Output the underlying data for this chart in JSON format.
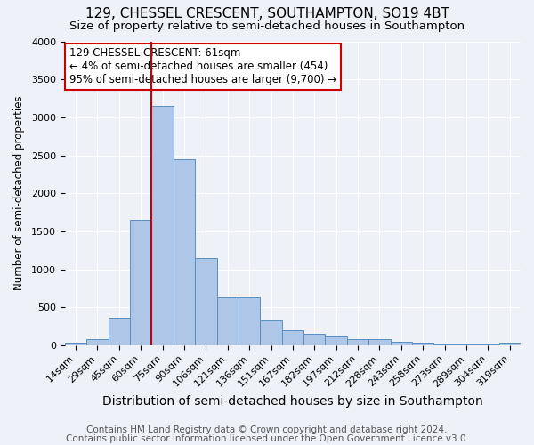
{
  "title1": "129, CHESSEL CRESCENT, SOUTHAMPTON, SO19 4BT",
  "title2": "Size of property relative to semi-detached houses in Southampton",
  "xlabel": "Distribution of semi-detached houses by size in Southampton",
  "ylabel": "Number of semi-detached properties",
  "footer1": "Contains HM Land Registry data © Crown copyright and database right 2024.",
  "footer2": "Contains public sector information licensed under the Open Government Licence v3.0.",
  "bar_labels": [
    "14sqm",
    "29sqm",
    "45sqm",
    "60sqm",
    "75sqm",
    "90sqm",
    "106sqm",
    "121sqm",
    "136sqm",
    "151sqm",
    "167sqm",
    "182sqm",
    "197sqm",
    "212sqm",
    "228sqm",
    "243sqm",
    "258sqm",
    "273sqm",
    "289sqm",
    "304sqm",
    "319sqm"
  ],
  "bar_values": [
    30,
    80,
    360,
    1650,
    3150,
    2450,
    1150,
    630,
    630,
    330,
    200,
    150,
    110,
    80,
    80,
    50,
    30,
    5,
    5,
    5,
    30
  ],
  "bar_color": "#aec6e8",
  "bar_edge_color": "#5a8fc0",
  "vline_color": "#cc0000",
  "vline_x_index": 3,
  "annotation_text": "129 CHESSEL CRESCENT: 61sqm\n← 4% of semi-detached houses are smaller (454)\n95% of semi-detached houses are larger (9,700) →",
  "annotation_box_color": "#ffffff",
  "annotation_box_edge_color": "#cc0000",
  "ylim": [
    0,
    4000
  ],
  "background_color": "#eef2f8",
  "grid_color": "#ffffff",
  "title1_fontsize": 11,
  "title2_fontsize": 9.5,
  "xlabel_fontsize": 10,
  "ylabel_fontsize": 8.5,
  "footer_fontsize": 7.5,
  "annotation_fontsize": 8.5,
  "tick_fontsize": 8
}
